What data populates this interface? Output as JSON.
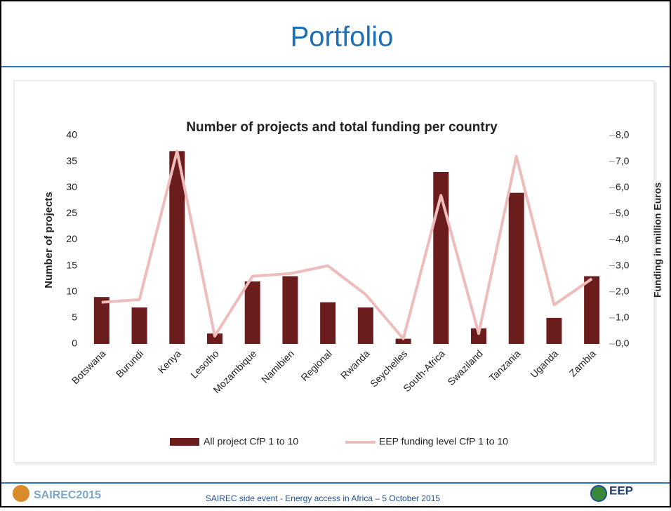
{
  "header": {
    "title": "Portfolio"
  },
  "footer": {
    "text": "SAIREC side event - Energy access in Africa – 5 October 2015",
    "left_logo": "SAIREC2015",
    "right_logo": "EEP"
  },
  "chart_data": {
    "type": "bar",
    "title": "Number of projects and total funding per country",
    "ylabel": "Number of projects",
    "y2label": "Funding in million Euros",
    "categories": [
      "Botswana",
      "Burundi",
      "Kenya",
      "Lesotho",
      "Mozambique",
      "Namibien",
      "Regional",
      "Rwanda",
      "Seychelles",
      "South-Africa",
      "Swaziland",
      "Tanzania",
      "Uganda",
      "Zambia"
    ],
    "series": [
      {
        "name": "All project CfP 1 to 10",
        "type": "bar",
        "color": "#6b1d1d",
        "values": [
          9,
          7,
          37,
          2,
          12,
          13,
          8,
          7,
          1,
          33,
          3,
          29,
          5,
          13
        ]
      },
      {
        "name": "EEP funding level CfP 1 to 10",
        "type": "line",
        "axis": "y2",
        "color": "#efbcbc",
        "values": [
          1.6,
          1.7,
          7.4,
          0.3,
          2.6,
          2.7,
          3.0,
          1.9,
          0.2,
          5.7,
          0.4,
          7.2,
          1.5,
          2.5
        ]
      }
    ],
    "ylim": [
      0,
      40
    ],
    "yticks": [
      0,
      5,
      10,
      15,
      20,
      25,
      30,
      35,
      40
    ],
    "y2lim": [
      0,
      8
    ],
    "y2ticks": [
      {
        "value": 0,
        "label": "0,0"
      },
      {
        "value": 1,
        "label": "1,0"
      },
      {
        "value": 2,
        "label": "2,0"
      },
      {
        "value": 3,
        "label": "3,0"
      },
      {
        "value": 4,
        "label": "4,0"
      },
      {
        "value": 5,
        "label": "5,0"
      },
      {
        "value": 6,
        "label": "6,0"
      },
      {
        "value": 7,
        "label": "7,0"
      },
      {
        "value": 8,
        "label": "8,0"
      }
    ],
    "grid": false,
    "legend": "bottom"
  }
}
